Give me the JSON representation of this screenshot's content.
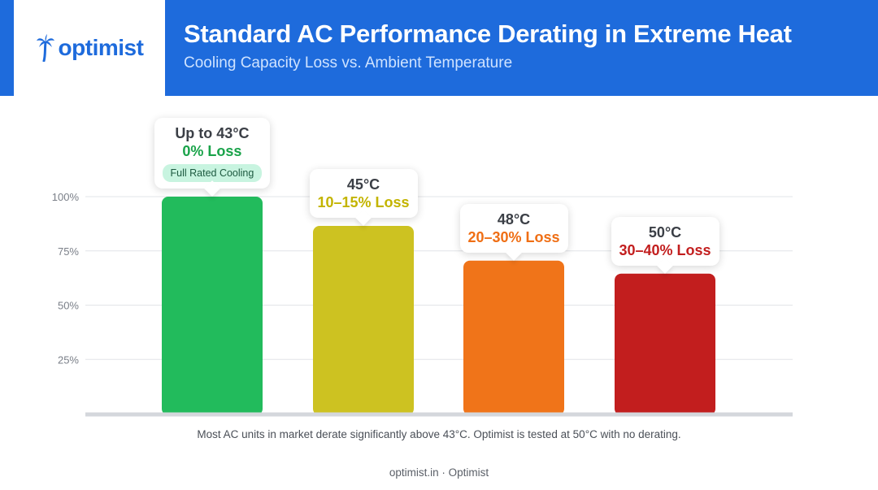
{
  "brand": {
    "logo_text": "optimist",
    "logo_icon": "palm-tree-icon",
    "color": "#1e6bdc"
  },
  "header": {
    "title": "Standard AC Performance Derating in Extreme Heat",
    "subtitle": "Cooling Capacity Loss vs. Ambient Temperature"
  },
  "chart_data": {
    "type": "bar",
    "title": "Standard AC Performance Derating in Extreme Heat",
    "subtitle": "Cooling Capacity Loss vs. Ambient Temperature",
    "xlabel": "",
    "ylabel": "",
    "ylim": [
      0,
      100
    ],
    "yticks": [
      25,
      50,
      75,
      100
    ],
    "ytick_labels": [
      "25%",
      "50%",
      "75%",
      "100%"
    ],
    "grid": true,
    "categories": [
      "Up to 43°C",
      "45°C",
      "48°C",
      "50°C"
    ],
    "values": [
      100,
      86.5,
      70.5,
      64.5
    ],
    "colors": [
      "#22bb5c",
      "#cdc221",
      "#f07419",
      "#c21e1e"
    ],
    "annotations": [
      {
        "temp": "Up to 43°C",
        "loss": "0% Loss",
        "color": "#1aa34a",
        "badge": "Full Rated Cooling"
      },
      {
        "temp": "45°C",
        "loss": "10–15% Loss",
        "color": "#c3b400",
        "badge": ""
      },
      {
        "temp": "48°C",
        "loss": "20–30% Loss",
        "color": "#ef6e14",
        "badge": ""
      },
      {
        "temp": "50°C",
        "loss": "30–40% Loss",
        "color": "#c21e1e",
        "badge": ""
      }
    ]
  },
  "footnote": "Most AC units in market derate significantly above 43°C. Optimist is tested at 50°C with no derating.",
  "footer": "optimist.in · Optimist"
}
